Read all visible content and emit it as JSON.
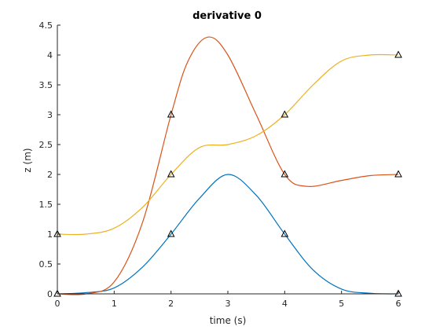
{
  "chart_data": {
    "type": "line",
    "title": "derivative 0",
    "xlabel": "time (s)",
    "ylabel": "z (m)",
    "xlim": [
      0,
      6
    ],
    "ylim": [
      0,
      4.5
    ],
    "xticks": [
      0,
      1,
      2,
      3,
      4,
      5,
      6
    ],
    "xtick_labels": [
      "0",
      "1",
      "2",
      "3",
      "4",
      "5",
      "6"
    ],
    "yticks": [
      0,
      0.5,
      1,
      1.5,
      2,
      2.5,
      3,
      3.5,
      4,
      4.5
    ],
    "ytick_labels": [
      "0",
      "0.5",
      "1",
      "1.5",
      "2",
      "2.5",
      "3",
      "3.5",
      "4",
      "4.5"
    ],
    "grid": false,
    "legend": false,
    "series": [
      {
        "color": "#0072BD",
        "x": [
          0,
          0.5,
          1,
          1.5,
          2,
          2.5,
          3,
          3.5,
          4,
          4.5,
          5,
          5.5,
          6
        ],
        "y": [
          0,
          0.02,
          0.1,
          0.45,
          1,
          1.6,
          2,
          1.65,
          1,
          0.4,
          0.08,
          0.01,
          0
        ]
      },
      {
        "color": "#D95319",
        "x": [
          0,
          0.5,
          1,
          1.5,
          2,
          2.3,
          2.65,
          3,
          3.5,
          4,
          4.4,
          5,
          5.5,
          6
        ],
        "y": [
          0,
          0,
          0.2,
          1.2,
          3,
          3.9,
          4.3,
          4,
          3,
          2,
          1.8,
          1.9,
          1.98,
          2
        ]
      },
      {
        "color": "#EDB120",
        "x": [
          0,
          0.5,
          1,
          1.5,
          2,
          2.5,
          3,
          3.5,
          4,
          4.5,
          5,
          5.5,
          6
        ],
        "y": [
          1,
          1,
          1.1,
          1.45,
          2,
          2.45,
          2.5,
          2.65,
          3,
          3.5,
          3.9,
          4,
          4
        ]
      }
    ],
    "markers": [
      {
        "x": 0,
        "y": 0
      },
      {
        "x": 0,
        "y": 1
      },
      {
        "x": 2,
        "y": 1
      },
      {
        "x": 2,
        "y": 2
      },
      {
        "x": 2,
        "y": 3
      },
      {
        "x": 4,
        "y": 1
      },
      {
        "x": 4,
        "y": 2
      },
      {
        "x": 4,
        "y": 3
      },
      {
        "x": 6,
        "y": 0
      },
      {
        "x": 6,
        "y": 2
      },
      {
        "x": 6,
        "y": 4
      }
    ]
  }
}
